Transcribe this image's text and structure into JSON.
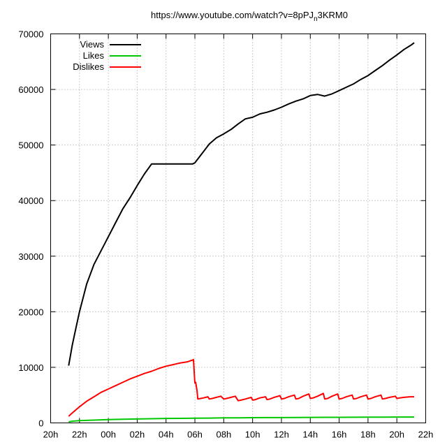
{
  "chart_data": {
    "type": "line",
    "title": "https://www.youtube.com/watch?v=8pPJ",
    "title_subscript": "n",
    "title_suffix": "3KRM0",
    "xlabel": "",
    "ylabel": "",
    "xlim": [
      20,
      46
    ],
    "ylim": [
      0,
      70000
    ],
    "grid": true,
    "legend_position": "top-left",
    "x_tick_values": [
      20,
      22,
      24,
      26,
      28,
      30,
      32,
      34,
      36,
      38,
      40,
      42,
      44,
      46
    ],
    "x_tick_labels": [
      "20h",
      "22h",
      "00h",
      "02h",
      "04h",
      "06h",
      "08h",
      "10h",
      "12h",
      "14h",
      "16h",
      "18h",
      "20h",
      "22h"
    ],
    "y_tick_values": [
      0,
      10000,
      20000,
      30000,
      40000,
      50000,
      60000,
      70000
    ],
    "y_tick_labels": [
      "0",
      "10000",
      "20000",
      "30000",
      "40000",
      "50000",
      "60000",
      "70000"
    ],
    "series": [
      {
        "name": "Views",
        "color": "#000000",
        "x": [
          21.25,
          21.5,
          21.75,
          22.0,
          22.5,
          23.0,
          23.5,
          24.0,
          24.5,
          25.0,
          25.5,
          26.0,
          26.5,
          27.0,
          27.5,
          27.75,
          28.0,
          28.5,
          29.0,
          29.5,
          29.85,
          30.0,
          30.5,
          31.0,
          31.5,
          32.0,
          32.5,
          33.0,
          33.5,
          34.0,
          34.5,
          35.0,
          35.5,
          36.0,
          36.5,
          37.0,
          37.5,
          38.0,
          38.5,
          39.0,
          39.5,
          39.75,
          40.0,
          40.5,
          41.0,
          41.5,
          42.0,
          42.5,
          43.0,
          43.5,
          44.0,
          44.5,
          45.0,
          45.2
        ],
        "y": [
          10300,
          14000,
          17000,
          20000,
          25000,
          28500,
          31000,
          33500,
          36000,
          38500,
          40500,
          42700,
          44800,
          46600,
          46600,
          46600,
          46600,
          46600,
          46600,
          46600,
          46600,
          46800,
          48500,
          50200,
          51300,
          52000,
          52800,
          53800,
          54700,
          55000,
          55600,
          55900,
          56300,
          56800,
          57400,
          57900,
          58300,
          58900,
          59100,
          58800,
          59200,
          59500,
          59800,
          60400,
          61000,
          61800,
          62500,
          63400,
          64300,
          65300,
          66200,
          67200,
          68000,
          68400
        ]
      },
      {
        "name": "Likes",
        "color": "#00c800",
        "x": [
          21.25,
          21.5,
          22.0,
          23.0,
          24.0,
          25.0,
          26.0,
          27.0,
          28.0,
          29.0,
          30.0,
          31.0,
          32.0,
          33.0,
          34.0,
          35.0,
          36.0,
          37.0,
          38.0,
          39.0,
          40.0,
          41.0,
          42.0,
          43.0,
          44.0,
          45.2
        ],
        "y": [
          200,
          300,
          400,
          500,
          600,
          650,
          700,
          750,
          800,
          820,
          850,
          870,
          900,
          920,
          940,
          950,
          960,
          970,
          990,
          1000,
          1010,
          1020,
          1030,
          1040,
          1050,
          1060
        ]
      },
      {
        "name": "Dislikes",
        "color": "#ff0000",
        "x": [
          21.25,
          21.5,
          22.0,
          22.5,
          23.0,
          23.5,
          24.0,
          24.5,
          25.0,
          25.5,
          26.0,
          26.5,
          27.0,
          27.5,
          28.0,
          28.5,
          29.0,
          29.5,
          29.7,
          29.85,
          29.9,
          30.0,
          30.05,
          30.15,
          30.2,
          30.4,
          30.6,
          30.9,
          31.0,
          31.2,
          31.5,
          31.8,
          32.0,
          32.2,
          32.5,
          32.8,
          33.0,
          33.2,
          33.5,
          33.9,
          34.0,
          34.2,
          34.5,
          34.9,
          35.0,
          35.2,
          35.5,
          35.9,
          36.0,
          36.2,
          36.5,
          36.9,
          37.0,
          37.2,
          37.5,
          37.9,
          38.0,
          38.2,
          38.5,
          38.9,
          39.0,
          39.2,
          39.5,
          39.9,
          40.0,
          40.2,
          40.5,
          40.9,
          41.0,
          41.2,
          41.5,
          41.9,
          42.0,
          42.2,
          42.5,
          42.9,
          43.0,
          43.2,
          43.5,
          43.9,
          44.0,
          44.2,
          44.5,
          44.9,
          45.2
        ],
        "y": [
          1200,
          1800,
          2900,
          3900,
          4700,
          5500,
          6100,
          6700,
          7300,
          7900,
          8400,
          8900,
          9300,
          9800,
          10200,
          10500,
          10800,
          11000,
          11200,
          11300,
          11400,
          7200,
          7300,
          5800,
          4300,
          4400,
          4500,
          4700,
          4300,
          4400,
          4600,
          4800,
          4300,
          4400,
          4600,
          4800,
          4000,
          4100,
          4300,
          4600,
          4100,
          4200,
          4500,
          4700,
          4200,
          4300,
          4600,
          4900,
          4300,
          4400,
          4700,
          5000,
          4300,
          4400,
          4800,
          5200,
          4400,
          4500,
          4800,
          5300,
          4300,
          4400,
          4800,
          5200,
          4300,
          4400,
          4700,
          5000,
          4300,
          4400,
          4700,
          5000,
          4300,
          4400,
          4700,
          5000,
          4300,
          4400,
          4600,
          4800,
          4400,
          4500,
          4600,
          4700,
          4700
        ]
      }
    ]
  }
}
